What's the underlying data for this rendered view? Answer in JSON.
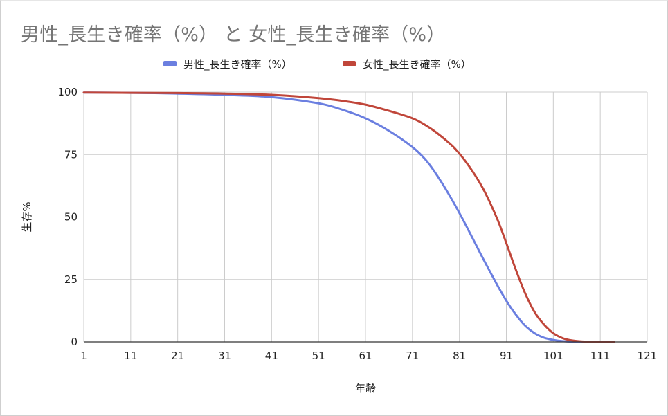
{
  "chart_data": {
    "type": "line",
    "title": "男性_長生き確率（%） と 女性_長生き確率（%）",
    "xlabel": "年齢",
    "ylabel": "生存%",
    "xlim": [
      1,
      121
    ],
    "ylim": [
      0,
      100
    ],
    "x_ticks": [
      1,
      11,
      21,
      31,
      41,
      51,
      61,
      71,
      81,
      91,
      101,
      111,
      121
    ],
    "y_ticks": [
      0,
      25,
      50,
      75,
      100
    ],
    "grid": true,
    "legend_position": "top",
    "series": [
      {
        "name": "男性_長生き確率（%）",
        "color": "#6b7fe0",
        "points": [
          [
            1,
            99.8
          ],
          [
            11,
            99.7
          ],
          [
            21,
            99.4
          ],
          [
            31,
            98.9
          ],
          [
            41,
            98.0
          ],
          [
            51,
            95.5
          ],
          [
            56,
            93.0
          ],
          [
            61,
            89.5
          ],
          [
            66,
            84.5
          ],
          [
            71,
            78.0
          ],
          [
            74,
            72.5
          ],
          [
            77,
            64.5
          ],
          [
            80,
            55.0
          ],
          [
            83,
            44.5
          ],
          [
            86,
            33.5
          ],
          [
            89,
            23.0
          ],
          [
            91,
            16.5
          ],
          [
            93,
            11.0
          ],
          [
            95,
            6.5
          ],
          [
            97,
            3.5
          ],
          [
            99,
            1.7
          ],
          [
            101,
            0.8
          ],
          [
            103,
            0.3
          ],
          [
            105,
            0.1
          ],
          [
            108,
            0.0
          ]
        ]
      },
      {
        "name": "女性_長生き確率（%）",
        "color": "#c0463a",
        "points": [
          [
            1,
            99.8
          ],
          [
            11,
            99.7
          ],
          [
            21,
            99.6
          ],
          [
            31,
            99.4
          ],
          [
            41,
            98.9
          ],
          [
            51,
            97.6
          ],
          [
            56,
            96.5
          ],
          [
            61,
            95.0
          ],
          [
            66,
            92.5
          ],
          [
            71,
            89.5
          ],
          [
            74,
            86.5
          ],
          [
            77,
            82.5
          ],
          [
            80,
            77.5
          ],
          [
            83,
            70.5
          ],
          [
            86,
            61.5
          ],
          [
            89,
            49.5
          ],
          [
            91,
            39.5
          ],
          [
            93,
            29.0
          ],
          [
            95,
            19.5
          ],
          [
            97,
            12.0
          ],
          [
            99,
            7.0
          ],
          [
            101,
            3.5
          ],
          [
            103,
            1.5
          ],
          [
            105,
            0.6
          ],
          [
            108,
            0.1
          ],
          [
            114,
            0.0
          ]
        ]
      }
    ]
  }
}
